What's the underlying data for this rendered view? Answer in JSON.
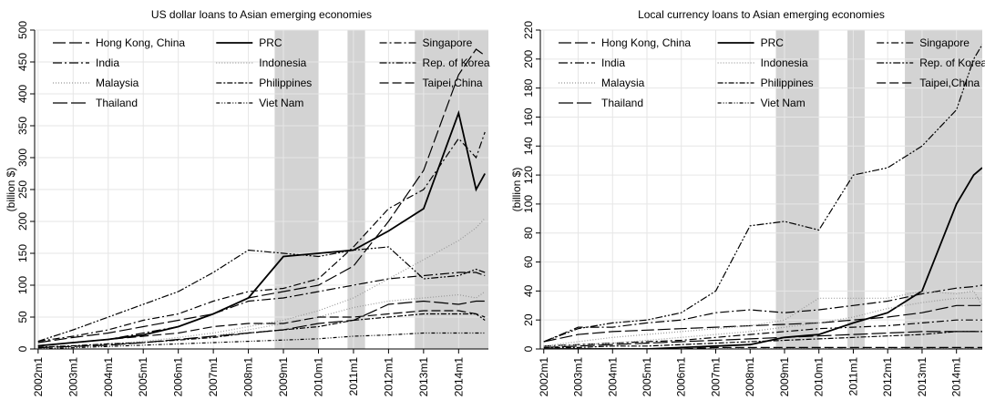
{
  "chart_data": [
    {
      "type": "line",
      "title": "US dollar loans to Asian emerging economies",
      "y_label": "(billion $)",
      "x": [
        2002,
        2003,
        2004,
        2005,
        2006,
        2007,
        2008,
        2009,
        2010,
        2011,
        2012,
        2013,
        2014,
        2014.5,
        2014.75
      ],
      "xlim": [
        2001.9,
        2014.85
      ],
      "xticks": [
        {
          "value": 2002,
          "label": "2002m1"
        },
        {
          "value": 2003,
          "label": "2003m1"
        },
        {
          "value": 2004,
          "label": "2004m1"
        },
        {
          "value": 2005,
          "label": "2005m1"
        },
        {
          "value": 2006,
          "label": "2006m1"
        },
        {
          "value": 2007,
          "label": "2007m1"
        },
        {
          "value": 2008,
          "label": "2008m1"
        },
        {
          "value": 2009,
          "label": "2009m1"
        },
        {
          "value": 2010,
          "label": "2010m1"
        },
        {
          "value": 2011,
          "label": "2011m1"
        },
        {
          "value": 2012,
          "label": "2012m1"
        },
        {
          "value": 2013,
          "label": "2013m1"
        },
        {
          "value": 2014,
          "label": "2014m1"
        }
      ],
      "ylim": [
        0,
        500
      ],
      "yticks": [
        0,
        50,
        100,
        150,
        200,
        250,
        300,
        350,
        400,
        450,
        500
      ],
      "grid": true,
      "shaded": [
        [
          2008.75,
          2010.0
        ],
        [
          2010.83,
          2011.33
        ],
        [
          2012.75,
          2014.85
        ]
      ],
      "series": [
        {
          "name": "Hong Kong, China",
          "color": "#000",
          "dash": "14,4",
          "values": [
            10,
            18,
            25,
            35,
            45,
            55,
            80,
            90,
            100,
            130,
            200,
            280,
            430,
            470,
            460
          ]
        },
        {
          "name": "PRC",
          "color": "#000",
          "values": [
            5,
            10,
            15,
            22,
            35,
            55,
            80,
            145,
            150,
            155,
            185,
            220,
            370,
            250,
            275
          ]
        },
        {
          "name": "Singapore",
          "color": "#000",
          "dash": "8,3,2,3",
          "values": [
            12,
            20,
            30,
            45,
            55,
            75,
            90,
            95,
            110,
            160,
            220,
            250,
            330,
            300,
            340
          ]
        },
        {
          "name": "India",
          "color": "#000",
          "dash": "10,3,2,3",
          "values": [
            5,
            10,
            15,
            25,
            35,
            55,
            75,
            80,
            90,
            100,
            110,
            115,
            120,
            120,
            115
          ]
        },
        {
          "name": "Indonesia",
          "color": "#999",
          "dash": "1,2",
          "values": [
            3,
            5,
            8,
            12,
            18,
            25,
            35,
            45,
            60,
            80,
            110,
            140,
            170,
            190,
            205
          ]
        },
        {
          "name": "Rep. of Korea",
          "color": "#000",
          "dash": "8,2,2,2,2,2",
          "values": [
            12,
            30,
            50,
            70,
            90,
            120,
            155,
            150,
            145,
            155,
            160,
            110,
            115,
            125,
            120
          ]
        },
        {
          "name": "Malaysia",
          "color": "#999",
          "dash": "1,2",
          "values": [
            2,
            4,
            6,
            10,
            14,
            20,
            30,
            40,
            50,
            65,
            75,
            80,
            85,
            80,
            90
          ]
        },
        {
          "name": "Philippines",
          "color": "#000",
          "dash": "6,2,2,2",
          "values": [
            3,
            5,
            8,
            10,
            14,
            18,
            25,
            30,
            35,
            45,
            50,
            55,
            55,
            55,
            45
          ]
        },
        {
          "name": "Taipei,China",
          "color": "#000",
          "dash": "10,4",
          "values": [
            5,
            10,
            15,
            20,
            25,
            35,
            40,
            40,
            50,
            50,
            55,
            60,
            60,
            55,
            50
          ]
        },
        {
          "name": "Thailand",
          "color": "#000",
          "dash": "16,4",
          "values": [
            2,
            4,
            6,
            10,
            15,
            20,
            25,
            30,
            40,
            45,
            70,
            75,
            70,
            75,
            75
          ]
        },
        {
          "name": "Viet Nam",
          "color": "#000",
          "dash": "4,2,1,2,1,2",
          "values": [
            0,
            2,
            4,
            6,
            8,
            10,
            12,
            14,
            16,
            20,
            22,
            25,
            25,
            25,
            25
          ]
        }
      ]
    },
    {
      "type": "line",
      "title": "Local currency loans to Asian emerging economies",
      "y_label": "(billion $)",
      "x": [
        2002,
        2003,
        2004,
        2005,
        2006,
        2007,
        2008,
        2009,
        2010,
        2011,
        2012,
        2013,
        2014,
        2014.5,
        2014.75
      ],
      "xlim": [
        2001.9,
        2014.75
      ],
      "xticks": [
        {
          "value": 2002,
          "label": "2002m1"
        },
        {
          "value": 2003,
          "label": "2003m1"
        },
        {
          "value": 2004,
          "label": "2004m1"
        },
        {
          "value": 2005,
          "label": "2005m1"
        },
        {
          "value": 2006,
          "label": "2006m1"
        },
        {
          "value": 2007,
          "label": "2007m1"
        },
        {
          "value": 2008,
          "label": "2008m1"
        },
        {
          "value": 2009,
          "label": "2009m1"
        },
        {
          "value": 2010,
          "label": "2010m1"
        },
        {
          "value": 2011,
          "label": "2011m1"
        },
        {
          "value": 2012,
          "label": "2012m1"
        },
        {
          "value": 2013,
          "label": "2013m1"
        },
        {
          "value": 2014,
          "label": "2014m1"
        }
      ],
      "ylim": [
        0,
        220
      ],
      "yticks": [
        0,
        20,
        40,
        60,
        80,
        100,
        120,
        140,
        160,
        180,
        200,
        220
      ],
      "grid": true,
      "shaded": [
        [
          2008.75,
          2010.0
        ],
        [
          2010.83,
          2011.33
        ],
        [
          2012.5,
          2014.75
        ]
      ],
      "series": [
        {
          "name": "Hong Kong, China",
          "color": "#000",
          "dash": "14,4",
          "values": [
            5,
            10,
            12,
            13,
            14,
            15,
            16,
            17,
            18,
            20,
            22,
            25,
            30,
            30,
            30
          ]
        },
        {
          "name": "PRC",
          "color": "#000",
          "values": [
            0,
            0,
            0,
            0,
            1,
            2,
            3,
            8,
            10,
            18,
            25,
            40,
            100,
            120,
            125
          ]
        },
        {
          "name": "Singapore",
          "color": "#000",
          "dash": "8,3,2,3",
          "values": [
            2,
            3,
            4,
            5,
            6,
            8,
            10,
            12,
            14,
            15,
            16,
            18,
            20,
            20,
            20
          ]
        },
        {
          "name": "India",
          "color": "#000",
          "dash": "10,3,2,3",
          "values": [
            5,
            15,
            15,
            18,
            20,
            25,
            27,
            25,
            27,
            30,
            33,
            38,
            42,
            43,
            44
          ]
        },
        {
          "name": "Indonesia",
          "color": "#999",
          "dash": "1,2",
          "values": [
            2,
            5,
            8,
            10,
            12,
            14,
            16,
            20,
            35,
            35,
            35,
            40,
            38,
            40,
            30
          ]
        },
        {
          "name": "Rep. of Korea",
          "color": "#000",
          "dash": "8,2,2,2,2,2",
          "values": [
            5,
            14,
            18,
            20,
            25,
            40,
            85,
            88,
            82,
            120,
            125,
            140,
            165,
            200,
            210
          ]
        },
        {
          "name": "Malaysia",
          "color": "#999",
          "dash": "1,2",
          "values": [
            2,
            3,
            4,
            6,
            8,
            10,
            12,
            15,
            18,
            22,
            28,
            32,
            35,
            35,
            35
          ]
        },
        {
          "name": "Philippines",
          "color": "#000",
          "dash": "6,2,2,2",
          "values": [
            1,
            1,
            2,
            2,
            3,
            4,
            5,
            6,
            7,
            8,
            9,
            10,
            12,
            12,
            12
          ]
        },
        {
          "name": "Taipei,China",
          "color": "#000",
          "dash": "10,4",
          "values": [
            0,
            0,
            0,
            0,
            0,
            1,
            1,
            1,
            1,
            1,
            1,
            1,
            1,
            1,
            1
          ]
        },
        {
          "name": "Thailand",
          "color": "#000",
          "dash": "16,4",
          "values": [
            1,
            2,
            3,
            4,
            5,
            6,
            7,
            8,
            9,
            10,
            11,
            12,
            12,
            12,
            12
          ]
        },
        {
          "name": "Viet Nam",
          "color": "#000",
          "dash": "4,2,1,2,1,2",
          "values": [
            0,
            0,
            0,
            0,
            0,
            0,
            0,
            0,
            0,
            0,
            0,
            0,
            0,
            0,
            0
          ]
        }
      ]
    }
  ]
}
